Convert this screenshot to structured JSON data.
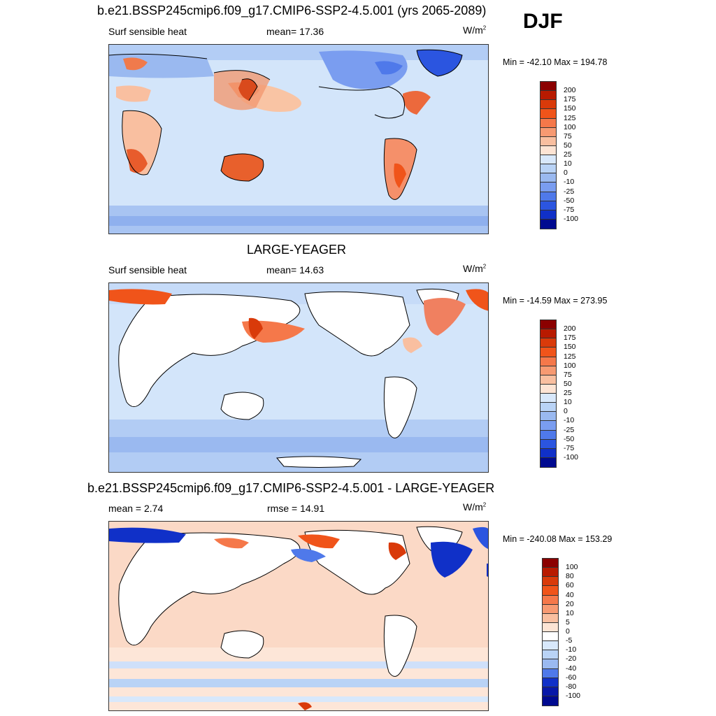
{
  "season": "DJF",
  "panels": [
    {
      "title": "b.e21.BSSP245cmip6.f09_g17.CMIP6-SSP2-4.5.001 (yrs 2065-2089)",
      "left_label": "Surf sensible heat",
      "center_label": "mean=  17.36",
      "units": "W/m",
      "units_sup": "2",
      "minmax": "Min = -42.10 Max = 194.78",
      "colorbar": {
        "labels": [
          "200",
          "175",
          "150",
          "125",
          "100",
          "75",
          "50",
          "25",
          "10",
          "0",
          "-10",
          "-25",
          "-50",
          "-75",
          "-100"
        ],
        "colors": [
          "#8b0000",
          "#b81a00",
          "#d93a0a",
          "#f0541a",
          "#f5784a",
          "#f79a72",
          "#f9bfa0",
          "#fde4d4",
          "#d8e8fb",
          "#b9d3f6",
          "#9ab9f0",
          "#7a9df0",
          "#4f79ea",
          "#2b55e0",
          "#1030c8",
          "#000a90"
        ]
      }
    },
    {
      "title": "LARGE-YEAGER",
      "left_label": "Surf sensible heat",
      "center_label": "mean=  14.63",
      "units": "W/m",
      "units_sup": "2",
      "minmax": "Min = -14.59 Max = 273.95",
      "colorbar": {
        "labels": [
          "200",
          "175",
          "150",
          "125",
          "100",
          "75",
          "50",
          "25",
          "10",
          "0",
          "-10",
          "-25",
          "-50",
          "-75",
          "-100"
        ],
        "colors": [
          "#8b0000",
          "#b81a00",
          "#d93a0a",
          "#f0541a",
          "#f5784a",
          "#f79a72",
          "#f9bfa0",
          "#fde4d4",
          "#d8e8fb",
          "#b9d3f6",
          "#9ab9f0",
          "#7a9df0",
          "#4f79ea",
          "#2b55e0",
          "#1030c8",
          "#000a90"
        ]
      }
    },
    {
      "title": "b.e21.BSSP245cmip6.f09_g17.CMIP6-SSP2-4.5.001 - LARGE-YEAGER",
      "left_label": "mean =   2.74",
      "center_label": "rmse =  14.91",
      "units": "W/m",
      "units_sup": "2",
      "minmax": "Min = -240.08 Max = 153.29",
      "colorbar": {
        "labels": [
          "100",
          "80",
          "60",
          "40",
          "20",
          "10",
          "5",
          "0",
          "-5",
          "-10",
          "-20",
          "-40",
          "-60",
          "-80",
          "-100"
        ],
        "colors": [
          "#8b0000",
          "#b81a00",
          "#d93a0a",
          "#f0541a",
          "#f5784a",
          "#f79a72",
          "#f9bfa0",
          "#fde4d4",
          "#ffffff",
          "#d8e8fb",
          "#b9d3f6",
          "#9ab9f0",
          "#4f79ea",
          "#1030c8",
          "#0818a8",
          "#000a90"
        ]
      }
    }
  ]
}
